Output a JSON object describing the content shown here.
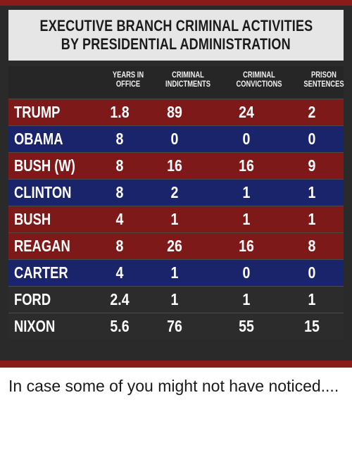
{
  "title": {
    "line1": "EXECUTIVE BRANCH CRIMINAL ACTIVITIES",
    "line2": "BY PRESIDENTIAL ADMINISTRATION"
  },
  "columns": [
    {
      "line1": "YEARS IN",
      "line2": "OFFICE"
    },
    {
      "line1": "CRIMINAL",
      "line2": "INDICTMENTS"
    },
    {
      "line1": "CRIMINAL",
      "line2": "CONVICTIONS"
    },
    {
      "line1": "PRISON",
      "line2": "SENTENCES"
    }
  ],
  "rows": [
    {
      "name": "TRUMP",
      "years": "1.8",
      "indictments": "89",
      "convictions": "24",
      "sentences": "2",
      "color": "#7e1919"
    },
    {
      "name": "OBAMA",
      "years": "8",
      "indictments": "0",
      "convictions": "0",
      "sentences": "0",
      "color": "#19246a"
    },
    {
      "name": "BUSH (W)",
      "years": "8",
      "indictments": "16",
      "convictions": "16",
      "sentences": "9",
      "color": "#7e1919"
    },
    {
      "name": "CLINTON",
      "years": "8",
      "indictments": "2",
      "convictions": "1",
      "sentences": "1",
      "color": "#19246a"
    },
    {
      "name": "BUSH",
      "years": "4",
      "indictments": "1",
      "convictions": "1",
      "sentences": "1",
      "color": "#7e1919"
    },
    {
      "name": "REAGAN",
      "years": "8",
      "indictments": "26",
      "convictions": "16",
      "sentences": "8",
      "color": "#7e1919"
    },
    {
      "name": "CARTER",
      "years": "4",
      "indictments": "1",
      "convictions": "0",
      "sentences": "0",
      "color": "#19246a"
    },
    {
      "name": "FORD",
      "years": "2.4",
      "indictments": "1",
      "convictions": "1",
      "sentences": "1",
      "color": "#2c2c2c"
    },
    {
      "name": "NIXON",
      "years": "5.6",
      "indictments": "76",
      "convictions": "55",
      "sentences": "15",
      "color": "#2c2c2c"
    }
  ],
  "caption": "In case some of you might not have noticed....",
  "colors": {
    "accent_red": "#8b1a1a",
    "row_red": "#7e1919",
    "row_blue": "#19246a",
    "row_dark": "#2c2c2c"
  }
}
